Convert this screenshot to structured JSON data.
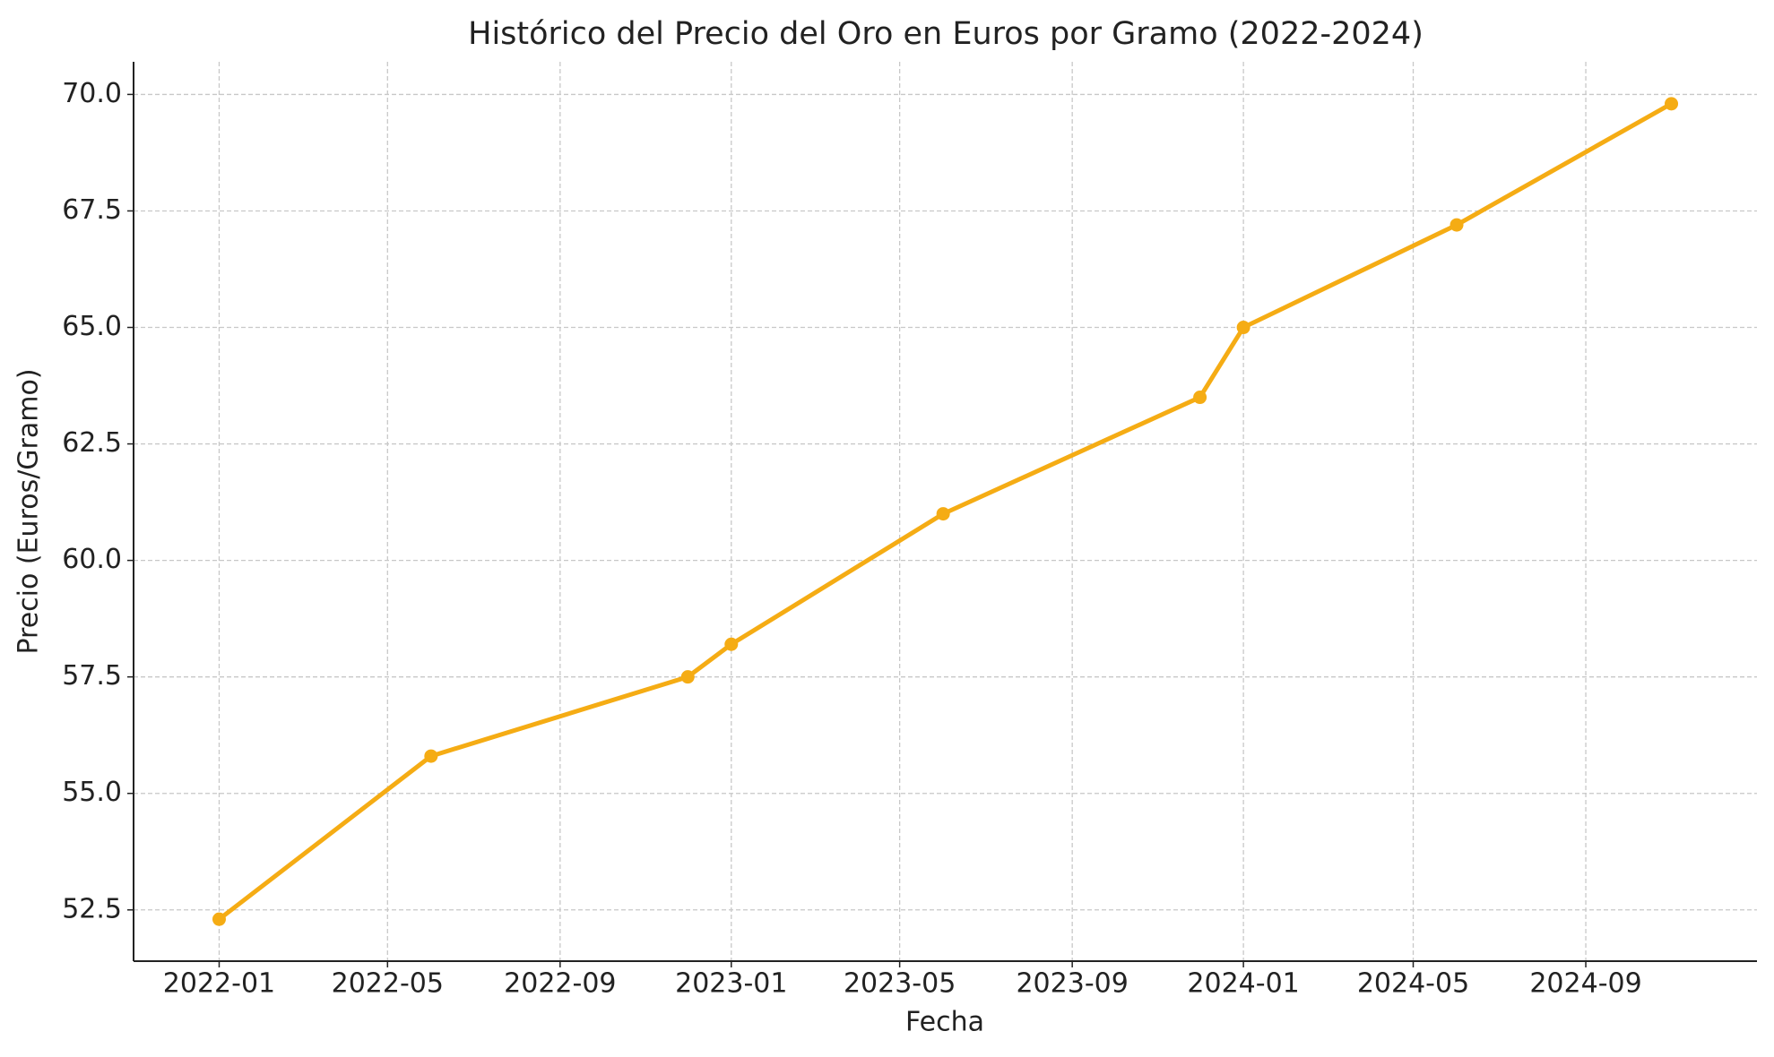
{
  "chart_data": {
    "type": "line",
    "title": "Histórico del Precio del Oro en Euros por Gramo (2022-2024)",
    "x_label": "Fecha",
    "y_label": "Precio (Euros/Gramo)",
    "x": [
      "2022-01",
      "2022-06",
      "2022-12",
      "2023-01",
      "2023-06",
      "2023-12",
      "2024-01",
      "2024-06",
      "2024-11"
    ],
    "series": [
      {
        "name": "Precio",
        "color": "#f5ac14",
        "values": [
          52.3,
          55.8,
          57.5,
          58.2,
          61.0,
          63.5,
          65.0,
          67.2,
          69.8
        ]
      }
    ],
    "xlim": [
      "2021-11",
      "2025-01"
    ],
    "xticks": [
      "2022-01",
      "2022-05",
      "2022-09",
      "2023-01",
      "2023-05",
      "2023-09",
      "2024-01",
      "2024-05",
      "2024-09"
    ],
    "ylim": [
      51.4,
      70.7
    ],
    "yticks": [
      {
        "value": 52.5,
        "label": "52.5"
      },
      {
        "value": 55,
        "label": "55.0"
      },
      {
        "value": 57.5,
        "label": "57.5"
      },
      {
        "value": 60,
        "label": "60.0"
      },
      {
        "value": 62.5,
        "label": "62.5"
      },
      {
        "value": 65,
        "label": "65.0"
      },
      {
        "value": 67.5,
        "label": "67.5"
      },
      {
        "value": 70,
        "label": "70.0"
      }
    ],
    "grid": true
  }
}
